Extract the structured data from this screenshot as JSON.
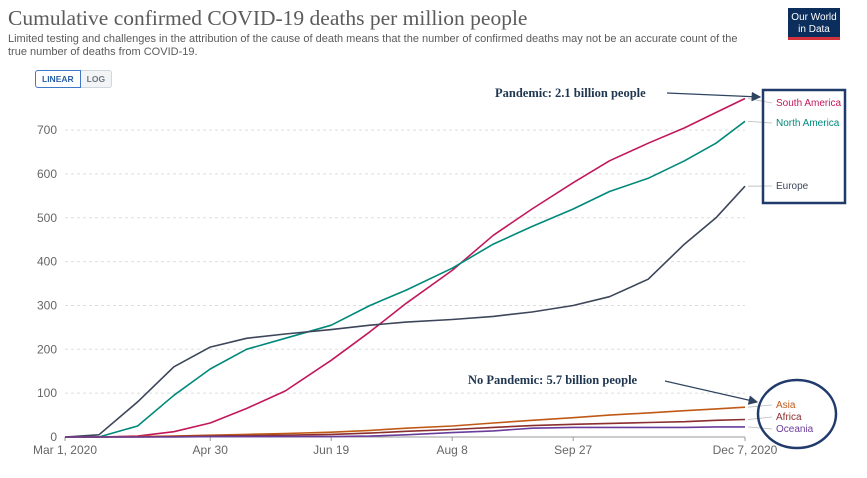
{
  "title": "Cumulative confirmed COVID-19 deaths per million people",
  "subtitle": "Limited testing and challenges in the attribution of the cause of death means that the number of confirmed deaths may not be an accurate count of the true number of deaths from COVID-19.",
  "logo": {
    "line1": "Our World",
    "line2": "in Data"
  },
  "scale_toggle": {
    "linear": "LINEAR",
    "log": "LOG",
    "selected": "LINEAR"
  },
  "annotations": {
    "pandemic": "Pandemic: 2.1 billion people",
    "no_pandemic": "No Pandemic: 5.7 billion people"
  },
  "chart_data": {
    "type": "line",
    "title": "Cumulative confirmed COVID-19 deaths per million people",
    "xlabel": "",
    "ylabel": "",
    "x_ticks": [
      "Mar 1, 2020",
      "Apr 30",
      "Jun 19",
      "Aug 8",
      "Sep 27",
      "Dec 7, 2020"
    ],
    "y_ticks": [
      0,
      100,
      200,
      300,
      400,
      500,
      600,
      700
    ],
    "ylim": [
      0,
      780
    ],
    "xlim": [
      "2020-03-01",
      "2020-12-07"
    ],
    "grid": "horizontal dashed",
    "legend": "labels at right end of lines",
    "x": [
      "2020-03-01",
      "2020-03-15",
      "2020-03-31",
      "2020-04-15",
      "2020-04-30",
      "2020-05-15",
      "2020-05-31",
      "2020-06-19",
      "2020-07-05",
      "2020-07-20",
      "2020-08-08",
      "2020-08-25",
      "2020-09-10",
      "2020-09-27",
      "2020-10-12",
      "2020-10-28",
      "2020-11-12",
      "2020-11-25",
      "2020-12-07"
    ],
    "series": [
      {
        "name": "South America",
        "color": "#c2185b",
        "values": [
          0,
          0,
          2,
          12,
          32,
          65,
          105,
          175,
          240,
          305,
          380,
          460,
          520,
          580,
          630,
          670,
          705,
          740,
          772
        ]
      },
      {
        "name": "North America",
        "color": "#00897b",
        "values": [
          0,
          0,
          25,
          95,
          155,
          200,
          225,
          255,
          300,
          335,
          385,
          440,
          480,
          520,
          560,
          590,
          630,
          670,
          720
        ]
      },
      {
        "name": "Europe",
        "color": "#3c4559",
        "values": [
          0,
          5,
          80,
          160,
          205,
          225,
          235,
          245,
          255,
          262,
          268,
          275,
          285,
          300,
          320,
          360,
          440,
          500,
          572
        ]
      },
      {
        "name": "Asia",
        "color": "#c05917",
        "values": [
          0,
          0,
          1,
          2,
          4,
          6,
          8,
          11,
          15,
          20,
          25,
          32,
          38,
          44,
          50,
          55,
          60,
          64,
          68
        ]
      },
      {
        "name": "Africa",
        "color": "#8b2e2e",
        "values": [
          0,
          0,
          0,
          1,
          2,
          3,
          4,
          6,
          9,
          13,
          17,
          22,
          26,
          29,
          31,
          33,
          35,
          38,
          40
        ]
      },
      {
        "name": "Oceania",
        "color": "#6a3d9a",
        "values": [
          0,
          0,
          0,
          0,
          1,
          1,
          1,
          1,
          2,
          5,
          10,
          14,
          20,
          22,
          22,
          22,
          22,
          23,
          23
        ]
      }
    ]
  },
  "colors": {
    "pandemic_box": "#1f3a6b",
    "annotation_arrow": "#2e4460",
    "grid": "#dddddd"
  }
}
